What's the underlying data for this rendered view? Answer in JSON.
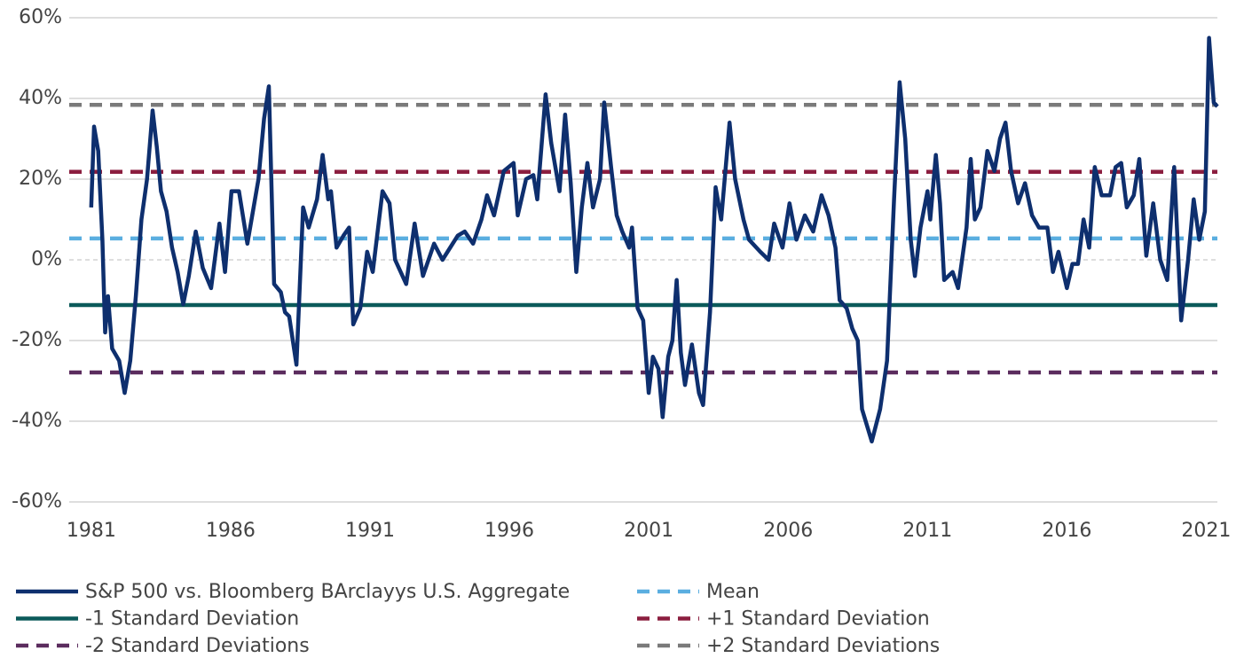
{
  "chart_data": {
    "type": "line",
    "xlim": [
      1979.7,
      2021.4
    ],
    "xticks": [
      1981,
      1986,
      1991,
      1996,
      2001,
      2006,
      2011,
      2016,
      2021
    ],
    "ylim": [
      -60,
      60
    ],
    "yticks": [
      {
        "value": -60,
        "label": "-60%"
      },
      {
        "value": -40,
        "label": "-40%"
      },
      {
        "value": -20,
        "label": "-20%"
      },
      {
        "value": 0,
        "label": "0%"
      },
      {
        "value": 20,
        "label": "20%"
      },
      {
        "value": 40,
        "label": "40%"
      },
      {
        "value": 60,
        "label": "60%"
      }
    ],
    "grid": true,
    "series": [
      {
        "name": "S&P 500 vs. Bloomberg BArclayys U.S. Aggregate",
        "color": "#0e2f6e",
        "x": [
          1981.0,
          1981.1,
          1981.25,
          1981.4,
          1981.5,
          1981.6,
          1981.75,
          1982.0,
          1982.2,
          1982.4,
          1982.6,
          1982.8,
          1983.0,
          1983.2,
          1983.35,
          1983.5,
          1983.7,
          1983.9,
          1984.1,
          1984.3,
          1984.5,
          1984.75,
          1985.0,
          1985.3,
          1985.6,
          1985.8,
          1986.03,
          1986.3,
          1986.6,
          1987.0,
          1987.2,
          1987.37,
          1987.56,
          1987.8,
          1987.95,
          1988.1,
          1988.36,
          1988.6,
          1988.8,
          1989.1,
          1989.3,
          1989.5,
          1989.6,
          1989.8,
          1990.05,
          1990.25,
          1990.4,
          1990.65,
          1990.9,
          1991.1,
          1991.45,
          1991.7,
          1991.9,
          1992.3,
          1992.6,
          1992.9,
          1993.3,
          1993.6,
          1994.15,
          1994.4,
          1994.7,
          1995.0,
          1995.2,
          1995.45,
          1995.8,
          1996.15,
          1996.3,
          1996.6,
          1996.86,
          1997.0,
          1997.3,
          1997.5,
          1997.8,
          1998.0,
          1998.2,
          1998.4,
          1998.6,
          1998.8,
          1999.0,
          1999.25,
          1999.4,
          1999.65,
          1999.85,
          2000.05,
          2000.3,
          2000.4,
          2000.6,
          2000.8,
          2001.0,
          2001.15,
          2001.35,
          2001.5,
          2001.7,
          2001.85,
          2002.0,
          2002.15,
          2002.3,
          2002.55,
          2002.8,
          2002.95,
          2003.2,
          2003.4,
          2003.6,
          2003.8,
          2003.9,
          2004.1,
          2004.4,
          2004.6,
          2005.0,
          2005.3,
          2005.5,
          2005.8,
          2006.05,
          2006.3,
          2006.6,
          2006.9,
          2007.2,
          2007.45,
          2007.7,
          2007.85,
          2008.1,
          2008.3,
          2008.5,
          2008.65,
          2009.0,
          2009.3,
          2009.55,
          2009.8,
          2010.0,
          2010.2,
          2010.4,
          2010.55,
          2010.75,
          2011.0,
          2011.1,
          2011.3,
          2011.45,
          2011.6,
          2011.9,
          2012.1,
          2012.4,
          2012.55,
          2012.7,
          2012.9,
          2013.15,
          2013.4,
          2013.6,
          2013.8,
          2014.0,
          2014.25,
          2014.5,
          2014.75,
          2015.0,
          2015.3,
          2015.5,
          2015.7,
          2016.0,
          2016.2,
          2016.4,
          2016.6,
          2016.8,
          2017.0,
          2017.25,
          2017.55,
          2017.75,
          2017.95,
          2018.15,
          2018.4,
          2018.6,
          2018.85,
          2019.1,
          2019.35,
          2019.6,
          2019.85,
          2020.1,
          2020.35,
          2020.55,
          2020.75,
          2020.95,
          2021.1,
          2021.27,
          2021.4
        ],
        "values": [
          13,
          33,
          27,
          5,
          -18,
          -9,
          -22,
          -25,
          -33,
          -25,
          -9,
          10,
          20,
          37,
          28,
          17,
          12,
          3,
          -3,
          -11,
          -4,
          7,
          -2,
          -7,
          9,
          -3,
          17,
          17,
          4,
          20,
          35,
          43,
          -6,
          -8,
          -13,
          -14,
          -26,
          13,
          8,
          15,
          26,
          15,
          17,
          3,
          6,
          8,
          -16,
          -12,
          2,
          -3,
          17,
          14,
          0,
          -6,
          9,
          -4,
          4,
          0,
          6,
          7,
          4,
          10,
          16,
          11,
          22,
          24,
          11,
          20,
          21,
          15,
          41,
          29,
          17,
          36,
          19,
          -3,
          13,
          24,
          13,
          20,
          39,
          23,
          11,
          7,
          3,
          8,
          -12,
          -15,
          -33,
          -24,
          -27,
          -39,
          -24,
          -20,
          -5,
          -23,
          -31,
          -21,
          -33,
          -36,
          -13,
          18,
          10,
          26,
          34,
          20,
          10,
          5,
          2,
          0,
          9,
          3,
          14,
          5,
          11,
          7,
          16,
          11,
          3,
          -10,
          -12,
          -17,
          -20,
          -37,
          -45,
          -37,
          -25,
          15,
          44,
          30,
          5,
          -4,
          8,
          17,
          10,
          26,
          14,
          -5,
          -3,
          -7,
          8,
          25,
          10,
          13,
          27,
          22,
          30,
          34,
          22,
          14,
          19,
          11,
          8,
          8,
          -3,
          2,
          -7,
          -1,
          -1,
          10,
          3,
          23,
          16,
          16,
          23,
          24,
          13,
          16,
          25,
          1,
          14,
          0,
          -5,
          23,
          -15,
          0,
          15,
          5,
          12,
          55,
          39,
          38
        ]
      }
    ],
    "reference_lines": [
      {
        "name": "Mean",
        "value": 5.3,
        "color": "#5aaee0",
        "dashed": true
      },
      {
        "name": "-1 Standard Deviation",
        "value": -11.2,
        "color": "#0b5a5a",
        "dashed": false
      },
      {
        "name": "+1 Standard Deviation",
        "value": 21.8,
        "color": "#8b1e3f",
        "dashed": true
      },
      {
        "name": "-2 Standard Deviations",
        "value": -27.9,
        "color": "#5b2c5e",
        "dashed": true
      },
      {
        "name": "+2 Standard Deviations",
        "value": 38.4,
        "color": "#7a7a7a",
        "dashed": true
      }
    ]
  }
}
